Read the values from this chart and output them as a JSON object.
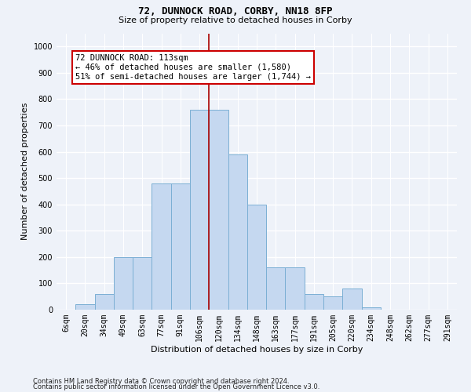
{
  "title1": "72, DUNNOCK ROAD, CORBY, NN18 8FP",
  "title2": "Size of property relative to detached houses in Corby",
  "xlabel": "Distribution of detached houses by size in Corby",
  "ylabel": "Number of detached properties",
  "categories": [
    "6sqm",
    "20sqm",
    "34sqm",
    "49sqm",
    "63sqm",
    "77sqm",
    "91sqm",
    "106sqm",
    "120sqm",
    "134sqm",
    "148sqm",
    "163sqm",
    "177sqm",
    "191sqm",
    "205sqm",
    "220sqm",
    "234sqm",
    "248sqm",
    "262sqm",
    "277sqm",
    "291sqm"
  ],
  "values": [
    0,
    20,
    60,
    200,
    200,
    480,
    480,
    760,
    760,
    590,
    400,
    160,
    160,
    60,
    50,
    80,
    10,
    0,
    0,
    0,
    0
  ],
  "bar_color": "#C5D8F0",
  "bar_edge_color": "#7BAFD4",
  "property_line_color": "#AA0000",
  "annotation_line1": "72 DUNNOCK ROAD: 113sqm",
  "annotation_line2": "← 46% of detached houses are smaller (1,580)",
  "annotation_line3": "51% of semi-detached houses are larger (1,744) →",
  "annotation_box_color": "#FFFFFF",
  "annotation_box_edge_color": "#CC0000",
  "ylim": [
    0,
    1050
  ],
  "yticks": [
    0,
    100,
    200,
    300,
    400,
    500,
    600,
    700,
    800,
    900,
    1000
  ],
  "footnote1": "Contains HM Land Registry data © Crown copyright and database right 2024.",
  "footnote2": "Contains public sector information licensed under the Open Government Licence v3.0.",
  "bg_color": "#EEF2F9",
  "grid_color": "#FFFFFF",
  "title1_fontsize": 9,
  "title2_fontsize": 8,
  "ylabel_fontsize": 8,
  "xlabel_fontsize": 8,
  "tick_fontsize": 7,
  "annot_fontsize": 7.5,
  "footnote_fontsize": 6
}
